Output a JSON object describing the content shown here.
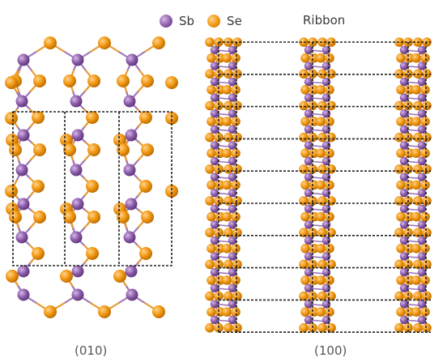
{
  "legend": {
    "sb_label": "Sb",
    "se_label": "Se"
  },
  "ribbon_label": "Ribbon",
  "captions": {
    "left": "(010)",
    "right": "(100)"
  },
  "colors": {
    "sb": "#8b5ba8",
    "se": "#f0960f",
    "sb_bond": "#a078b8",
    "se_bond": "#e89a30",
    "dashed": "#222222",
    "background": "#ffffff"
  }
}
